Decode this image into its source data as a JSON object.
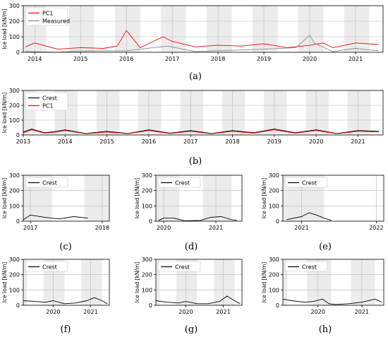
{
  "figure": {
    "captions": [
      "(a)",
      "(b)",
      "(c)",
      "(d)",
      "(e)",
      "(f)",
      "(g)",
      "(h)"
    ]
  },
  "chart_data": [
    {
      "panel": "a",
      "type": "line",
      "ylabel": "Ice load [kN/m]",
      "yticks": [
        0,
        100,
        200,
        300
      ],
      "ylim": [
        0,
        300
      ],
      "xticks": [
        2014,
        2015,
        2016,
        2017,
        2018,
        2019,
        2020,
        2021
      ],
      "xlim": [
        2013.75,
        2021.6
      ],
      "legend_position": "top-left",
      "grid": true,
      "shaded_periods": [
        [
          2013.75,
          2014.25
        ],
        [
          2014.75,
          2015.3
        ],
        [
          2015.75,
          2016.3
        ],
        [
          2016.75,
          2017.3
        ],
        [
          2017.75,
          2018.3
        ],
        [
          2018.75,
          2019.3
        ],
        [
          2019.75,
          2020.3
        ],
        [
          2020.75,
          2021.3
        ]
      ],
      "series": [
        {
          "name": "PC1",
          "color": "#ff0000",
          "x": [
            2013.8,
            2014.0,
            2014.5,
            2015.0,
            2015.5,
            2015.8,
            2016.0,
            2016.3,
            2016.8,
            2017.0,
            2017.5,
            2018.0,
            2018.5,
            2019.0,
            2019.5,
            2020.0,
            2020.3,
            2020.5,
            2021.0,
            2021.5
          ],
          "y": [
            35,
            60,
            20,
            30,
            25,
            40,
            140,
            30,
            100,
            70,
            35,
            45,
            40,
            55,
            30,
            45,
            60,
            30,
            60,
            50
          ]
        },
        {
          "name": "Measured",
          "color": "#888888",
          "x": [
            2013.8,
            2014.5,
            2015.0,
            2016.0,
            2016.9,
            2017.5,
            2018.0,
            2019.0,
            2019.7,
            2020.0,
            2020.1,
            2020.5,
            2021.0,
            2021.5
          ],
          "y": [
            5,
            0,
            8,
            10,
            40,
            5,
            10,
            20,
            30,
            110,
            60,
            5,
            25,
            10
          ]
        }
      ]
    },
    {
      "panel": "b",
      "type": "line",
      "ylabel": "Ice load [kN/m]",
      "yticks": [
        0,
        100,
        200,
        300
      ],
      "ylim": [
        0,
        300
      ],
      "xticks": [
        2013,
        2014,
        2015,
        2016,
        2017,
        2018,
        2019,
        2020,
        2021
      ],
      "xlim": [
        2013.0,
        2021.6
      ],
      "legend_position": "top-left",
      "grid": true,
      "shaded_periods": [
        [
          2013.0,
          2013.3
        ],
        [
          2013.75,
          2014.3
        ],
        [
          2014.75,
          2015.3
        ],
        [
          2015.75,
          2016.3
        ],
        [
          2016.75,
          2017.3
        ],
        [
          2017.75,
          2018.3
        ],
        [
          2018.75,
          2019.3
        ],
        [
          2019.75,
          2020.3
        ],
        [
          2020.75,
          2021.3
        ]
      ],
      "series": [
        {
          "name": "Crest",
          "color": "#000000",
          "x": [
            2013.0,
            2013.2,
            2013.5,
            2013.8,
            2014.0,
            2014.5,
            2015.0,
            2015.5,
            2016.0,
            2016.5,
            2017.0,
            2017.5,
            2018.0,
            2018.5,
            2019.0,
            2019.5,
            2020.0,
            2020.5,
            2021.0,
            2021.5
          ],
          "y": [
            20,
            40,
            15,
            25,
            35,
            10,
            25,
            10,
            35,
            12,
            30,
            10,
            30,
            15,
            40,
            15,
            35,
            10,
            30,
            25
          ]
        },
        {
          "name": "PC1",
          "color": "#ff0000",
          "x": [
            2013.0,
            2013.2,
            2013.5,
            2013.8,
            2014.0,
            2014.5,
            2015.0,
            2015.5,
            2016.0,
            2016.5,
            2017.0,
            2017.5,
            2018.0,
            2018.5,
            2019.0,
            2019.5,
            2020.0,
            2020.5,
            2021.0,
            2021.5
          ],
          "y": [
            15,
            35,
            12,
            20,
            30,
            8,
            20,
            8,
            30,
            10,
            25,
            8,
            25,
            12,
            35,
            12,
            30,
            8,
            25,
            20
          ]
        }
      ]
    },
    {
      "panel": "c",
      "type": "line",
      "ylabel": "Ice load [kN/m]",
      "yticks": [
        0,
        100,
        200,
        300
      ],
      "ylim": [
        0,
        300
      ],
      "xticks": [
        2017,
        2018
      ],
      "xlim": [
        2016.9,
        2018.1
      ],
      "legend_position": "top-left",
      "grid": true,
      "shaded_periods": [
        [
          2016.9,
          2017.3
        ],
        [
          2017.75,
          2018.1
        ]
      ],
      "series": [
        {
          "name": "Crest",
          "color": "#000000",
          "x": [
            2016.9,
            2017.0,
            2017.2,
            2017.4,
            2017.6,
            2017.8
          ],
          "y": [
            10,
            40,
            25,
            15,
            30,
            20
          ]
        }
      ]
    },
    {
      "panel": "d",
      "type": "line",
      "ylabel": "Ice load [kN/m]",
      "yticks": [
        0,
        100,
        200,
        300
      ],
      "ylim": [
        0,
        300
      ],
      "xticks": [
        2020,
        2021
      ],
      "xlim": [
        2019.85,
        2021.5
      ],
      "legend_position": "top-left",
      "grid": true,
      "shaded_periods": [
        [
          2019.85,
          2020.3
        ],
        [
          2020.75,
          2021.3
        ]
      ],
      "series": [
        {
          "name": "Crest",
          "color": "#000000",
          "x": [
            2019.9,
            2020.0,
            2020.2,
            2020.4,
            2020.7,
            2020.9,
            2021.1,
            2021.3,
            2021.4
          ],
          "y": [
            5,
            20,
            20,
            3,
            5,
            25,
            30,
            10,
            5
          ]
        }
      ]
    },
    {
      "panel": "e",
      "type": "line",
      "ylabel": "Ice load [kN/m]",
      "yticks": [
        0,
        100,
        200,
        300
      ],
      "ylim": [
        0,
        300
      ],
      "xticks": [
        2021,
        2022
      ],
      "xlim": [
        2020.75,
        2022.1
      ],
      "legend_position": "top-left",
      "grid": true,
      "shaded_periods": [
        [
          2020.75,
          2021.3
        ]
      ],
      "series": [
        {
          "name": "Crest",
          "color": "#000000",
          "x": [
            2020.8,
            2021.0,
            2021.1,
            2021.2,
            2021.3,
            2021.4
          ],
          "y": [
            10,
            30,
            55,
            40,
            20,
            5
          ]
        }
      ]
    },
    {
      "panel": "f",
      "type": "line",
      "ylabel": "Ice load [kN/m]",
      "yticks": [
        0,
        100,
        200,
        300
      ],
      "ylim": [
        0,
        300
      ],
      "xticks": [
        2020,
        2021
      ],
      "xlim": [
        2019.2,
        2021.5
      ],
      "legend_position": "top-left",
      "grid": true,
      "shaded_periods": [
        [
          2019.2,
          2019.3
        ],
        [
          2019.75,
          2020.3
        ],
        [
          2020.75,
          2021.3
        ]
      ],
      "series": [
        {
          "name": "Crest",
          "color": "#000000",
          "x": [
            2019.2,
            2019.5,
            2019.8,
            2020.0,
            2020.3,
            2020.6,
            2020.9,
            2021.1,
            2021.3,
            2021.45
          ],
          "y": [
            30,
            25,
            20,
            30,
            10,
            15,
            30,
            50,
            30,
            10
          ]
        }
      ]
    },
    {
      "panel": "g",
      "type": "line",
      "ylabel": "Ice load [kN/m]",
      "yticks": [
        0,
        100,
        200,
        300
      ],
      "ylim": [
        0,
        300
      ],
      "xticks": [
        2020,
        2021
      ],
      "xlim": [
        2019.2,
        2021.5
      ],
      "legend_position": "top-left",
      "grid": true,
      "shaded_periods": [
        [
          2019.2,
          2019.3
        ],
        [
          2019.75,
          2020.3
        ],
        [
          2020.75,
          2021.3
        ]
      ],
      "series": [
        {
          "name": "Crest",
          "color": "#000000",
          "x": [
            2019.2,
            2019.5,
            2019.8,
            2020.0,
            2020.3,
            2020.6,
            2020.9,
            2021.1,
            2021.3,
            2021.45
          ],
          "y": [
            30,
            20,
            15,
            25,
            10,
            10,
            25,
            60,
            30,
            10
          ]
        }
      ]
    },
    {
      "panel": "h",
      "type": "line",
      "ylabel": "Ice load [kN/m]",
      "yticks": [
        0,
        100,
        200,
        300
      ],
      "ylim": [
        0,
        300
      ],
      "xticks": [
        2020,
        2021
      ],
      "xlim": [
        2019.2,
        2021.5
      ],
      "legend_position": "top-left",
      "grid": true,
      "shaded_periods": [
        [
          2019.2,
          2019.3
        ],
        [
          2019.75,
          2020.3
        ],
        [
          2020.75,
          2021.3
        ]
      ],
      "series": [
        {
          "name": "Crest",
          "color": "#000000",
          "x": [
            2019.2,
            2019.4,
            2019.7,
            2019.9,
            2020.1,
            2020.25,
            2020.4,
            2020.7,
            2021.0,
            2021.3,
            2021.45
          ],
          "y": [
            40,
            30,
            20,
            25,
            40,
            10,
            5,
            10,
            20,
            40,
            20
          ]
        }
      ]
    }
  ]
}
